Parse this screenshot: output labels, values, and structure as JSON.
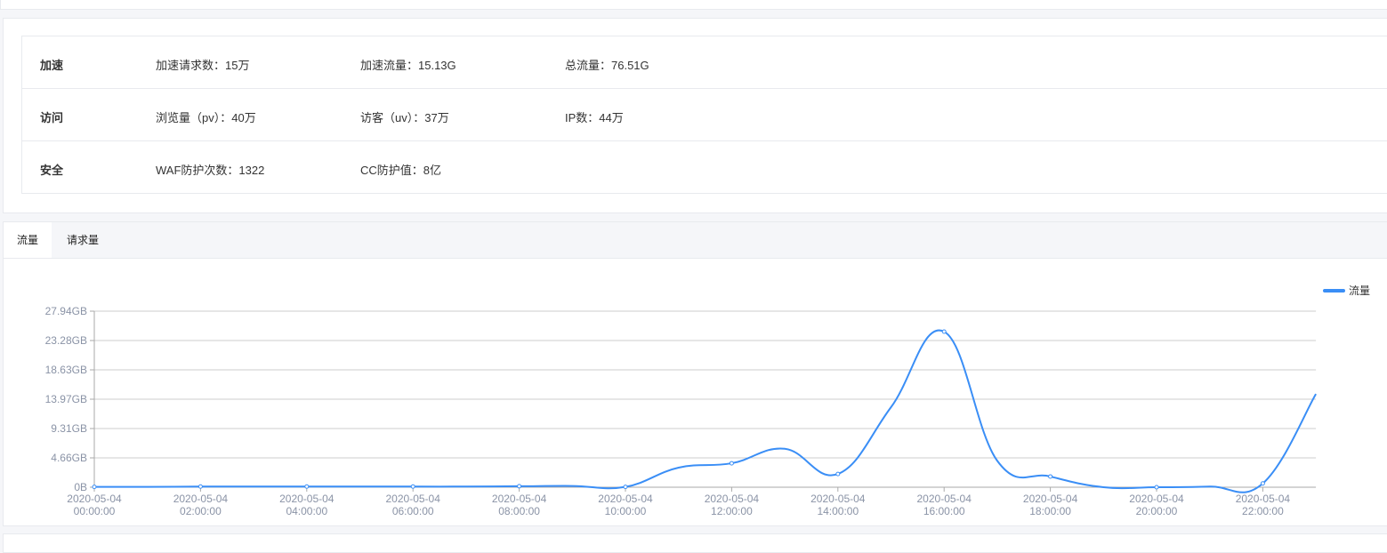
{
  "stats": {
    "rows": [
      {
        "label": "加速",
        "items": [
          "加速请求数：15万",
          "加速流量：15.13G",
          "总流量：76.51G"
        ]
      },
      {
        "label": "访问",
        "items": [
          "浏览量（pv）：40万",
          "访客（uv）：37万",
          "IP数：44万"
        ]
      },
      {
        "label": "安全",
        "items": [
          "WAF防护次数：1322",
          "CC防护值：8亿"
        ]
      }
    ]
  },
  "tabs": [
    {
      "label": "流量",
      "active": true
    },
    {
      "label": "请求量",
      "active": false
    }
  ],
  "chart_data": {
    "type": "line",
    "smooth": true,
    "legend": {
      "entries": [
        "流量"
      ],
      "position": "top-right"
    },
    "y_ticks": [
      "0B",
      "4.66GB",
      "9.31GB",
      "13.97GB",
      "18.63GB",
      "23.28GB",
      "27.94GB"
    ],
    "ylim": [
      0,
      27.94
    ],
    "y_unit": "GB",
    "grid": true,
    "x_labels": [
      "2020-05-04 00:00:00",
      "2020-05-04 02:00:00",
      "2020-05-04 04:00:00",
      "2020-05-04 06:00:00",
      "2020-05-04 08:00:00",
      "2020-05-04 10:00:00",
      "2020-05-04 12:00:00",
      "2020-05-04 14:00:00",
      "2020-05-04 16:00:00",
      "2020-05-04 18:00:00",
      "2020-05-04 20:00:00",
      "2020-05-04 22:00:00"
    ],
    "x_hours": [
      0,
      1,
      2,
      3,
      4,
      5,
      6,
      7,
      8,
      9,
      10,
      11,
      12,
      13,
      14,
      15,
      16,
      17,
      18,
      19,
      20,
      21,
      22,
      23
    ],
    "series": [
      {
        "name": "流量",
        "color": "#3a8ef6",
        "values": [
          0.05,
          0.05,
          0.1,
          0.1,
          0.1,
          0.1,
          0.1,
          0.1,
          0.15,
          0.2,
          0.05,
          3.1,
          3.8,
          6.1,
          2.1,
          12.7,
          24.7,
          4.2,
          1.7,
          0,
          0,
          0.1,
          0.6,
          14.8
        ]
      }
    ]
  }
}
